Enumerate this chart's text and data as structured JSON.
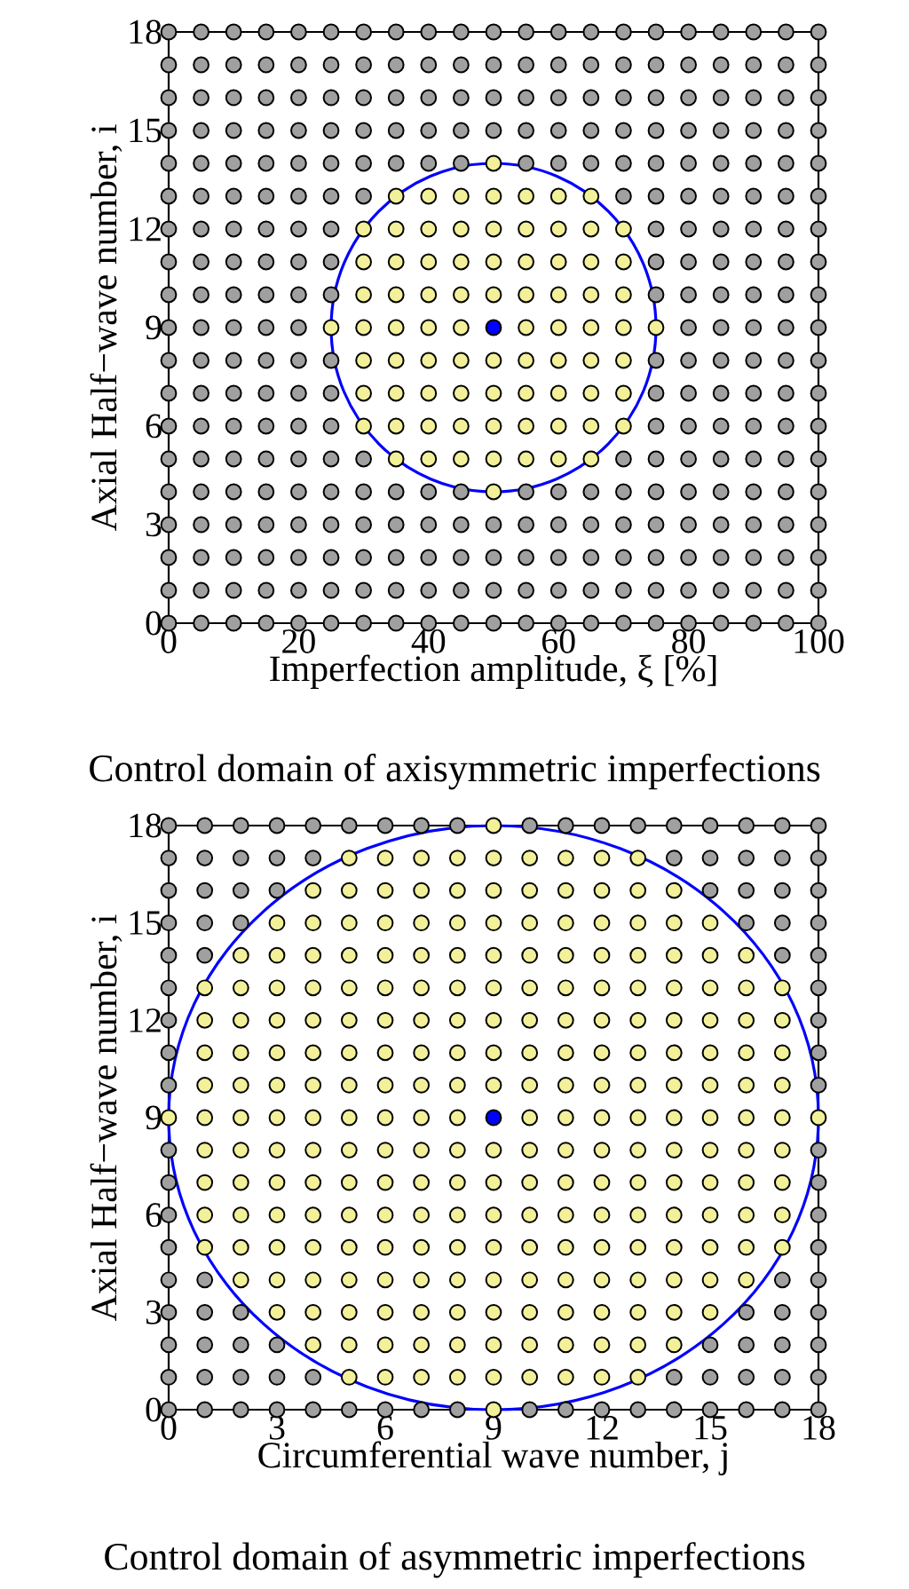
{
  "chart_data": [
    {
      "type": "scatter",
      "xlabel": "Imperfection amplitude, ξ [%]",
      "ylabel": "Axial Half−wave number, i",
      "annotations": [
        "Control domain of axisymmetric imperfections"
      ],
      "marker": "circle",
      "xlim": [
        0,
        100
      ],
      "ylim": [
        0,
        18
      ],
      "xticks": [
        0,
        20,
        40,
        60,
        80,
        100
      ],
      "yticks": [
        0,
        3,
        6,
        9,
        12,
        15,
        18
      ],
      "series": [
        {
          "color": "#a0a0a0",
          "x": [
            0,
            5,
            10,
            15,
            20,
            25,
            30,
            35,
            40,
            45,
            50,
            55,
            60,
            65,
            70,
            75,
            80,
            85,
            90,
            95,
            100,
            0,
            5,
            10,
            15,
            20,
            25,
            30,
            35,
            40,
            45,
            50,
            55,
            60,
            65,
            70,
            75,
            80,
            85,
            90,
            95,
            100,
            0,
            5,
            10,
            15,
            20,
            25,
            30,
            35,
            40,
            45,
            50,
            55,
            60,
            65,
            70,
            75,
            80,
            85,
            90,
            95,
            100,
            0,
            5,
            10,
            15,
            20,
            25,
            30,
            35,
            40,
            45,
            50,
            55,
            60,
            65,
            70,
            75,
            80,
            85,
            90,
            95,
            100,
            0,
            5,
            10,
            15,
            20,
            25,
            30,
            35,
            40,
            45,
            55,
            60,
            65,
            70,
            75,
            80,
            85,
            90,
            95,
            100,
            0,
            5,
            10,
            15,
            20,
            25,
            30,
            70,
            75,
            80,
            85,
            90,
            95,
            100,
            0,
            5,
            10,
            15,
            20,
            25,
            75,
            80,
            85,
            90,
            95,
            100,
            0,
            5,
            10,
            15,
            20,
            25,
            75,
            80,
            85,
            90,
            95,
            100,
            0,
            5,
            10,
            15,
            20,
            25,
            75,
            80,
            85,
            90,
            95,
            100,
            0,
            5,
            10,
            15,
            20,
            80,
            85,
            90,
            95,
            100,
            0,
            5,
            10,
            15,
            20,
            25,
            75,
            80,
            85,
            90,
            95,
            100,
            0,
            5,
            10,
            15,
            20,
            25,
            75,
            80,
            85,
            90,
            95,
            100,
            0,
            5,
            10,
            15,
            20,
            25,
            75,
            80,
            85,
            90,
            95,
            100,
            0,
            5,
            10,
            15,
            20,
            25,
            30,
            70,
            75,
            80,
            85,
            90,
            95,
            100,
            0,
            5,
            10,
            15,
            20,
            25,
            30,
            35,
            40,
            45,
            55,
            60,
            65,
            70,
            75,
            80,
            85,
            90,
            95,
            100,
            0,
            5,
            10,
            15,
            20,
            25,
            30,
            35,
            40,
            45,
            50,
            55,
            60,
            65,
            70,
            75,
            80,
            85,
            90,
            95,
            100,
            0,
            5,
            10,
            15,
            20,
            25,
            30,
            35,
            40,
            45,
            50,
            55,
            60,
            65,
            70,
            75,
            80,
            85,
            90,
            95,
            100,
            0,
            5,
            10,
            15,
            20,
            25,
            30,
            35,
            40,
            45,
            50,
            55,
            60,
            65,
            70,
            75,
            80,
            85,
            90,
            95,
            100,
            0,
            5,
            10,
            15,
            20,
            25,
            30,
            35,
            40,
            45,
            50,
            55,
            60,
            65,
            70,
            75,
            80,
            85,
            90,
            95,
            100
          ],
          "values": [
            0,
            0,
            0,
            0,
            0,
            0,
            0,
            0,
            0,
            0,
            0,
            0,
            0,
            0,
            0,
            0,
            0,
            0,
            0,
            0,
            0,
            1,
            1,
            1,
            1,
            1,
            1,
            1,
            1,
            1,
            1,
            1,
            1,
            1,
            1,
            1,
            1,
            1,
            1,
            1,
            1,
            1,
            2,
            2,
            2,
            2,
            2,
            2,
            2,
            2,
            2,
            2,
            2,
            2,
            2,
            2,
            2,
            2,
            2,
            2,
            2,
            2,
            2,
            3,
            3,
            3,
            3,
            3,
            3,
            3,
            3,
            3,
            3,
            3,
            3,
            3,
            3,
            3,
            3,
            3,
            3,
            3,
            3,
            3,
            4,
            4,
            4,
            4,
            4,
            4,
            4,
            4,
            4,
            4,
            4,
            4,
            4,
            4,
            4,
            4,
            4,
            4,
            4,
            4,
            5,
            5,
            5,
            5,
            5,
            5,
            5,
            5,
            5,
            5,
            5,
            5,
            5,
            5,
            6,
            6,
            6,
            6,
            6,
            6,
            6,
            6,
            6,
            6,
            6,
            6,
            7,
            7,
            7,
            7,
            7,
            7,
            7,
            7,
            7,
            7,
            7,
            7,
            8,
            8,
            8,
            8,
            8,
            8,
            8,
            8,
            8,
            8,
            8,
            8,
            9,
            9,
            9,
            9,
            9,
            9,
            9,
            9,
            9,
            9,
            10,
            10,
            10,
            10,
            10,
            10,
            10,
            10,
            10,
            10,
            10,
            10,
            11,
            11,
            11,
            11,
            11,
            11,
            11,
            11,
            11,
            11,
            11,
            11,
            12,
            12,
            12,
            12,
            12,
            12,
            12,
            12,
            12,
            12,
            12,
            12,
            13,
            13,
            13,
            13,
            13,
            13,
            13,
            13,
            13,
            13,
            13,
            13,
            13,
            13,
            14,
            14,
            14,
            14,
            14,
            14,
            14,
            14,
            14,
            14,
            14,
            14,
            14,
            14,
            14,
            14,
            14,
            14,
            14,
            14,
            15,
            15,
            15,
            15,
            15,
            15,
            15,
            15,
            15,
            15,
            15,
            15,
            15,
            15,
            15,
            15,
            15,
            15,
            15,
            15,
            15,
            16,
            16,
            16,
            16,
            16,
            16,
            16,
            16,
            16,
            16,
            16,
            16,
            16,
            16,
            16,
            16,
            16,
            16,
            16,
            16,
            16,
            17,
            17,
            17,
            17,
            17,
            17,
            17,
            17,
            17,
            17,
            17,
            17,
            17,
            17,
            17,
            17,
            17,
            17,
            17,
            17,
            17,
            18,
            18,
            18,
            18,
            18,
            18,
            18,
            18,
            18,
            18,
            18,
            18,
            18,
            18,
            18,
            18,
            18,
            18,
            18,
            18,
            18
          ]
        },
        {
          "color": "#f2f099",
          "x": [
            50,
            35,
            40,
            45,
            50,
            55,
            60,
            65,
            30,
            35,
            40,
            45,
            50,
            55,
            60,
            65,
            70,
            30,
            35,
            40,
            45,
            50,
            55,
            60,
            65,
            70,
            30,
            35,
            40,
            45,
            50,
            55,
            60,
            65,
            70,
            25,
            30,
            35,
            40,
            45,
            55,
            60,
            65,
            70,
            75,
            30,
            35,
            40,
            45,
            50,
            55,
            60,
            65,
            70,
            30,
            35,
            40,
            45,
            50,
            55,
            60,
            65,
            70,
            30,
            35,
            40,
            45,
            50,
            55,
            60,
            65,
            70,
            35,
            40,
            45,
            50,
            55,
            60,
            65,
            50
          ],
          "values": [
            4,
            5,
            5,
            5,
            5,
            5,
            5,
            5,
            6,
            6,
            6,
            6,
            6,
            6,
            6,
            6,
            6,
            7,
            7,
            7,
            7,
            7,
            7,
            7,
            7,
            7,
            8,
            8,
            8,
            8,
            8,
            8,
            8,
            8,
            8,
            9,
            9,
            9,
            9,
            9,
            9,
            9,
            9,
            9,
            9,
            10,
            10,
            10,
            10,
            10,
            10,
            10,
            10,
            10,
            11,
            11,
            11,
            11,
            11,
            11,
            11,
            11,
            11,
            12,
            12,
            12,
            12,
            12,
            12,
            12,
            12,
            12,
            13,
            13,
            13,
            13,
            13,
            13,
            13,
            14
          ]
        },
        {
          "color": "#0000ff",
          "x": [
            50
          ],
          "values": [
            9
          ]
        }
      ]
    },
    {
      "type": "scatter",
      "xlabel": "Circumferential wave number, j",
      "ylabel": "Axial Half−wave number, i",
      "annotations": [
        "Control domain of asymmetric imperfections"
      ],
      "marker": "circle",
      "xlim": [
        0,
        18
      ],
      "ylim": [
        0,
        18
      ],
      "xticks": [
        0,
        3,
        6,
        9,
        12,
        15,
        18
      ],
      "yticks": [
        0,
        3,
        6,
        9,
        12,
        15,
        18
      ],
      "series": [
        {
          "color": "#a0a0a0",
          "x": [
            0,
            1,
            2,
            3,
            4,
            5,
            6,
            7,
            8,
            10,
            11,
            12,
            13,
            14,
            15,
            16,
            17,
            18,
            0,
            1,
            2,
            3,
            4,
            14,
            15,
            16,
            17,
            18,
            0,
            1,
            2,
            3,
            15,
            16,
            17,
            18,
            0,
            1,
            2,
            16,
            17,
            18,
            0,
            1,
            17,
            18,
            0,
            18,
            0,
            18,
            0,
            18,
            0,
            18,
            0,
            18,
            0,
            18,
            0,
            18,
            0,
            18,
            0,
            1,
            17,
            18,
            0,
            1,
            2,
            16,
            17,
            18,
            0,
            1,
            2,
            3,
            15,
            16,
            17,
            18,
            0,
            1,
            2,
            3,
            4,
            14,
            15,
            16,
            17,
            18,
            0,
            1,
            2,
            3,
            4,
            5,
            6,
            7,
            8,
            10,
            11,
            12,
            13,
            14,
            15,
            16,
            17,
            18
          ],
          "values": [
            0,
            0,
            0,
            0,
            0,
            0,
            0,
            0,
            0,
            0,
            0,
            0,
            0,
            0,
            0,
            0,
            0,
            0,
            1,
            1,
            1,
            1,
            1,
            1,
            1,
            1,
            1,
            1,
            2,
            2,
            2,
            2,
            2,
            2,
            2,
            2,
            3,
            3,
            3,
            3,
            3,
            3,
            4,
            4,
            4,
            4,
            5,
            5,
            6,
            6,
            7,
            7,
            8,
            8,
            10,
            10,
            11,
            11,
            12,
            12,
            13,
            13,
            14,
            14,
            14,
            14,
            15,
            15,
            15,
            15,
            15,
            15,
            16,
            16,
            16,
            16,
            16,
            16,
            16,
            16,
            17,
            17,
            17,
            17,
            17,
            17,
            17,
            17,
            17,
            17,
            18,
            18,
            18,
            18,
            18,
            18,
            18,
            18,
            18,
            18,
            18,
            18,
            18,
            18,
            18,
            18,
            18,
            18
          ]
        },
        {
          "color": "#f2f099",
          "x": [
            9,
            5,
            6,
            7,
            8,
            9,
            10,
            11,
            12,
            13,
            4,
            5,
            6,
            7,
            8,
            9,
            10,
            11,
            12,
            13,
            14,
            3,
            4,
            5,
            6,
            7,
            8,
            9,
            10,
            11,
            12,
            13,
            14,
            15,
            2,
            3,
            4,
            5,
            6,
            7,
            8,
            9,
            10,
            11,
            12,
            13,
            14,
            15,
            16,
            1,
            2,
            3,
            4,
            5,
            6,
            7,
            8,
            9,
            10,
            11,
            12,
            13,
            14,
            15,
            16,
            17,
            1,
            2,
            3,
            4,
            5,
            6,
            7,
            8,
            9,
            10,
            11,
            12,
            13,
            14,
            15,
            16,
            17,
            1,
            2,
            3,
            4,
            5,
            6,
            7,
            8,
            9,
            10,
            11,
            12,
            13,
            14,
            15,
            16,
            17,
            1,
            2,
            3,
            4,
            5,
            6,
            7,
            8,
            9,
            10,
            11,
            12,
            13,
            14,
            15,
            16,
            17,
            0,
            1,
            2,
            3,
            4,
            5,
            6,
            7,
            8,
            10,
            11,
            12,
            13,
            14,
            15,
            16,
            17,
            18,
            1,
            2,
            3,
            4,
            5,
            6,
            7,
            8,
            9,
            10,
            11,
            12,
            13,
            14,
            15,
            16,
            17,
            1,
            2,
            3,
            4,
            5,
            6,
            7,
            8,
            9,
            10,
            11,
            12,
            13,
            14,
            15,
            16,
            17,
            1,
            2,
            3,
            4,
            5,
            6,
            7,
            8,
            9,
            10,
            11,
            12,
            13,
            14,
            15,
            16,
            17,
            1,
            2,
            3,
            4,
            5,
            6,
            7,
            8,
            9,
            10,
            11,
            12,
            13,
            14,
            15,
            16,
            17,
            2,
            3,
            4,
            5,
            6,
            7,
            8,
            9,
            10,
            11,
            12,
            13,
            14,
            15,
            16,
            3,
            4,
            5,
            6,
            7,
            8,
            9,
            10,
            11,
            12,
            13,
            14,
            15,
            4,
            5,
            6,
            7,
            8,
            9,
            10,
            11,
            12,
            13,
            14,
            5,
            6,
            7,
            8,
            9,
            10,
            11,
            12,
            13,
            9
          ],
          "values": [
            0,
            1,
            1,
            1,
            1,
            1,
            1,
            1,
            1,
            1,
            2,
            2,
            2,
            2,
            2,
            2,
            2,
            2,
            2,
            2,
            2,
            3,
            3,
            3,
            3,
            3,
            3,
            3,
            3,
            3,
            3,
            3,
            3,
            3,
            4,
            4,
            4,
            4,
            4,
            4,
            4,
            4,
            4,
            4,
            4,
            4,
            4,
            4,
            4,
            5,
            5,
            5,
            5,
            5,
            5,
            5,
            5,
            5,
            5,
            5,
            5,
            5,
            5,
            5,
            5,
            5,
            6,
            6,
            6,
            6,
            6,
            6,
            6,
            6,
            6,
            6,
            6,
            6,
            6,
            6,
            6,
            6,
            6,
            7,
            7,
            7,
            7,
            7,
            7,
            7,
            7,
            7,
            7,
            7,
            7,
            7,
            7,
            7,
            7,
            7,
            8,
            8,
            8,
            8,
            8,
            8,
            8,
            8,
            8,
            8,
            8,
            8,
            8,
            8,
            8,
            8,
            8,
            9,
            9,
            9,
            9,
            9,
            9,
            9,
            9,
            9,
            9,
            9,
            9,
            9,
            9,
            9,
            9,
            9,
            9,
            10,
            10,
            10,
            10,
            10,
            10,
            10,
            10,
            10,
            10,
            10,
            10,
            10,
            10,
            10,
            10,
            10,
            11,
            11,
            11,
            11,
            11,
            11,
            11,
            11,
            11,
            11,
            11,
            11,
            11,
            11,
            11,
            11,
            11,
            12,
            12,
            12,
            12,
            12,
            12,
            12,
            12,
            12,
            12,
            12,
            12,
            12,
            12,
            12,
            12,
            12,
            13,
            13,
            13,
            13,
            13,
            13,
            13,
            13,
            13,
            13,
            13,
            13,
            13,
            13,
            13,
            13,
            13,
            14,
            14,
            14,
            14,
            14,
            14,
            14,
            14,
            14,
            14,
            14,
            14,
            14,
            14,
            14,
            15,
            15,
            15,
            15,
            15,
            15,
            15,
            15,
            15,
            15,
            15,
            15,
            15,
            16,
            16,
            16,
            16,
            16,
            16,
            16,
            16,
            16,
            16,
            16,
            17,
            17,
            17,
            17,
            17,
            17,
            17,
            17,
            17,
            18
          ]
        },
        {
          "color": "#0000ff",
          "x": [
            9
          ],
          "values": [
            9
          ]
        }
      ]
    }
  ]
}
